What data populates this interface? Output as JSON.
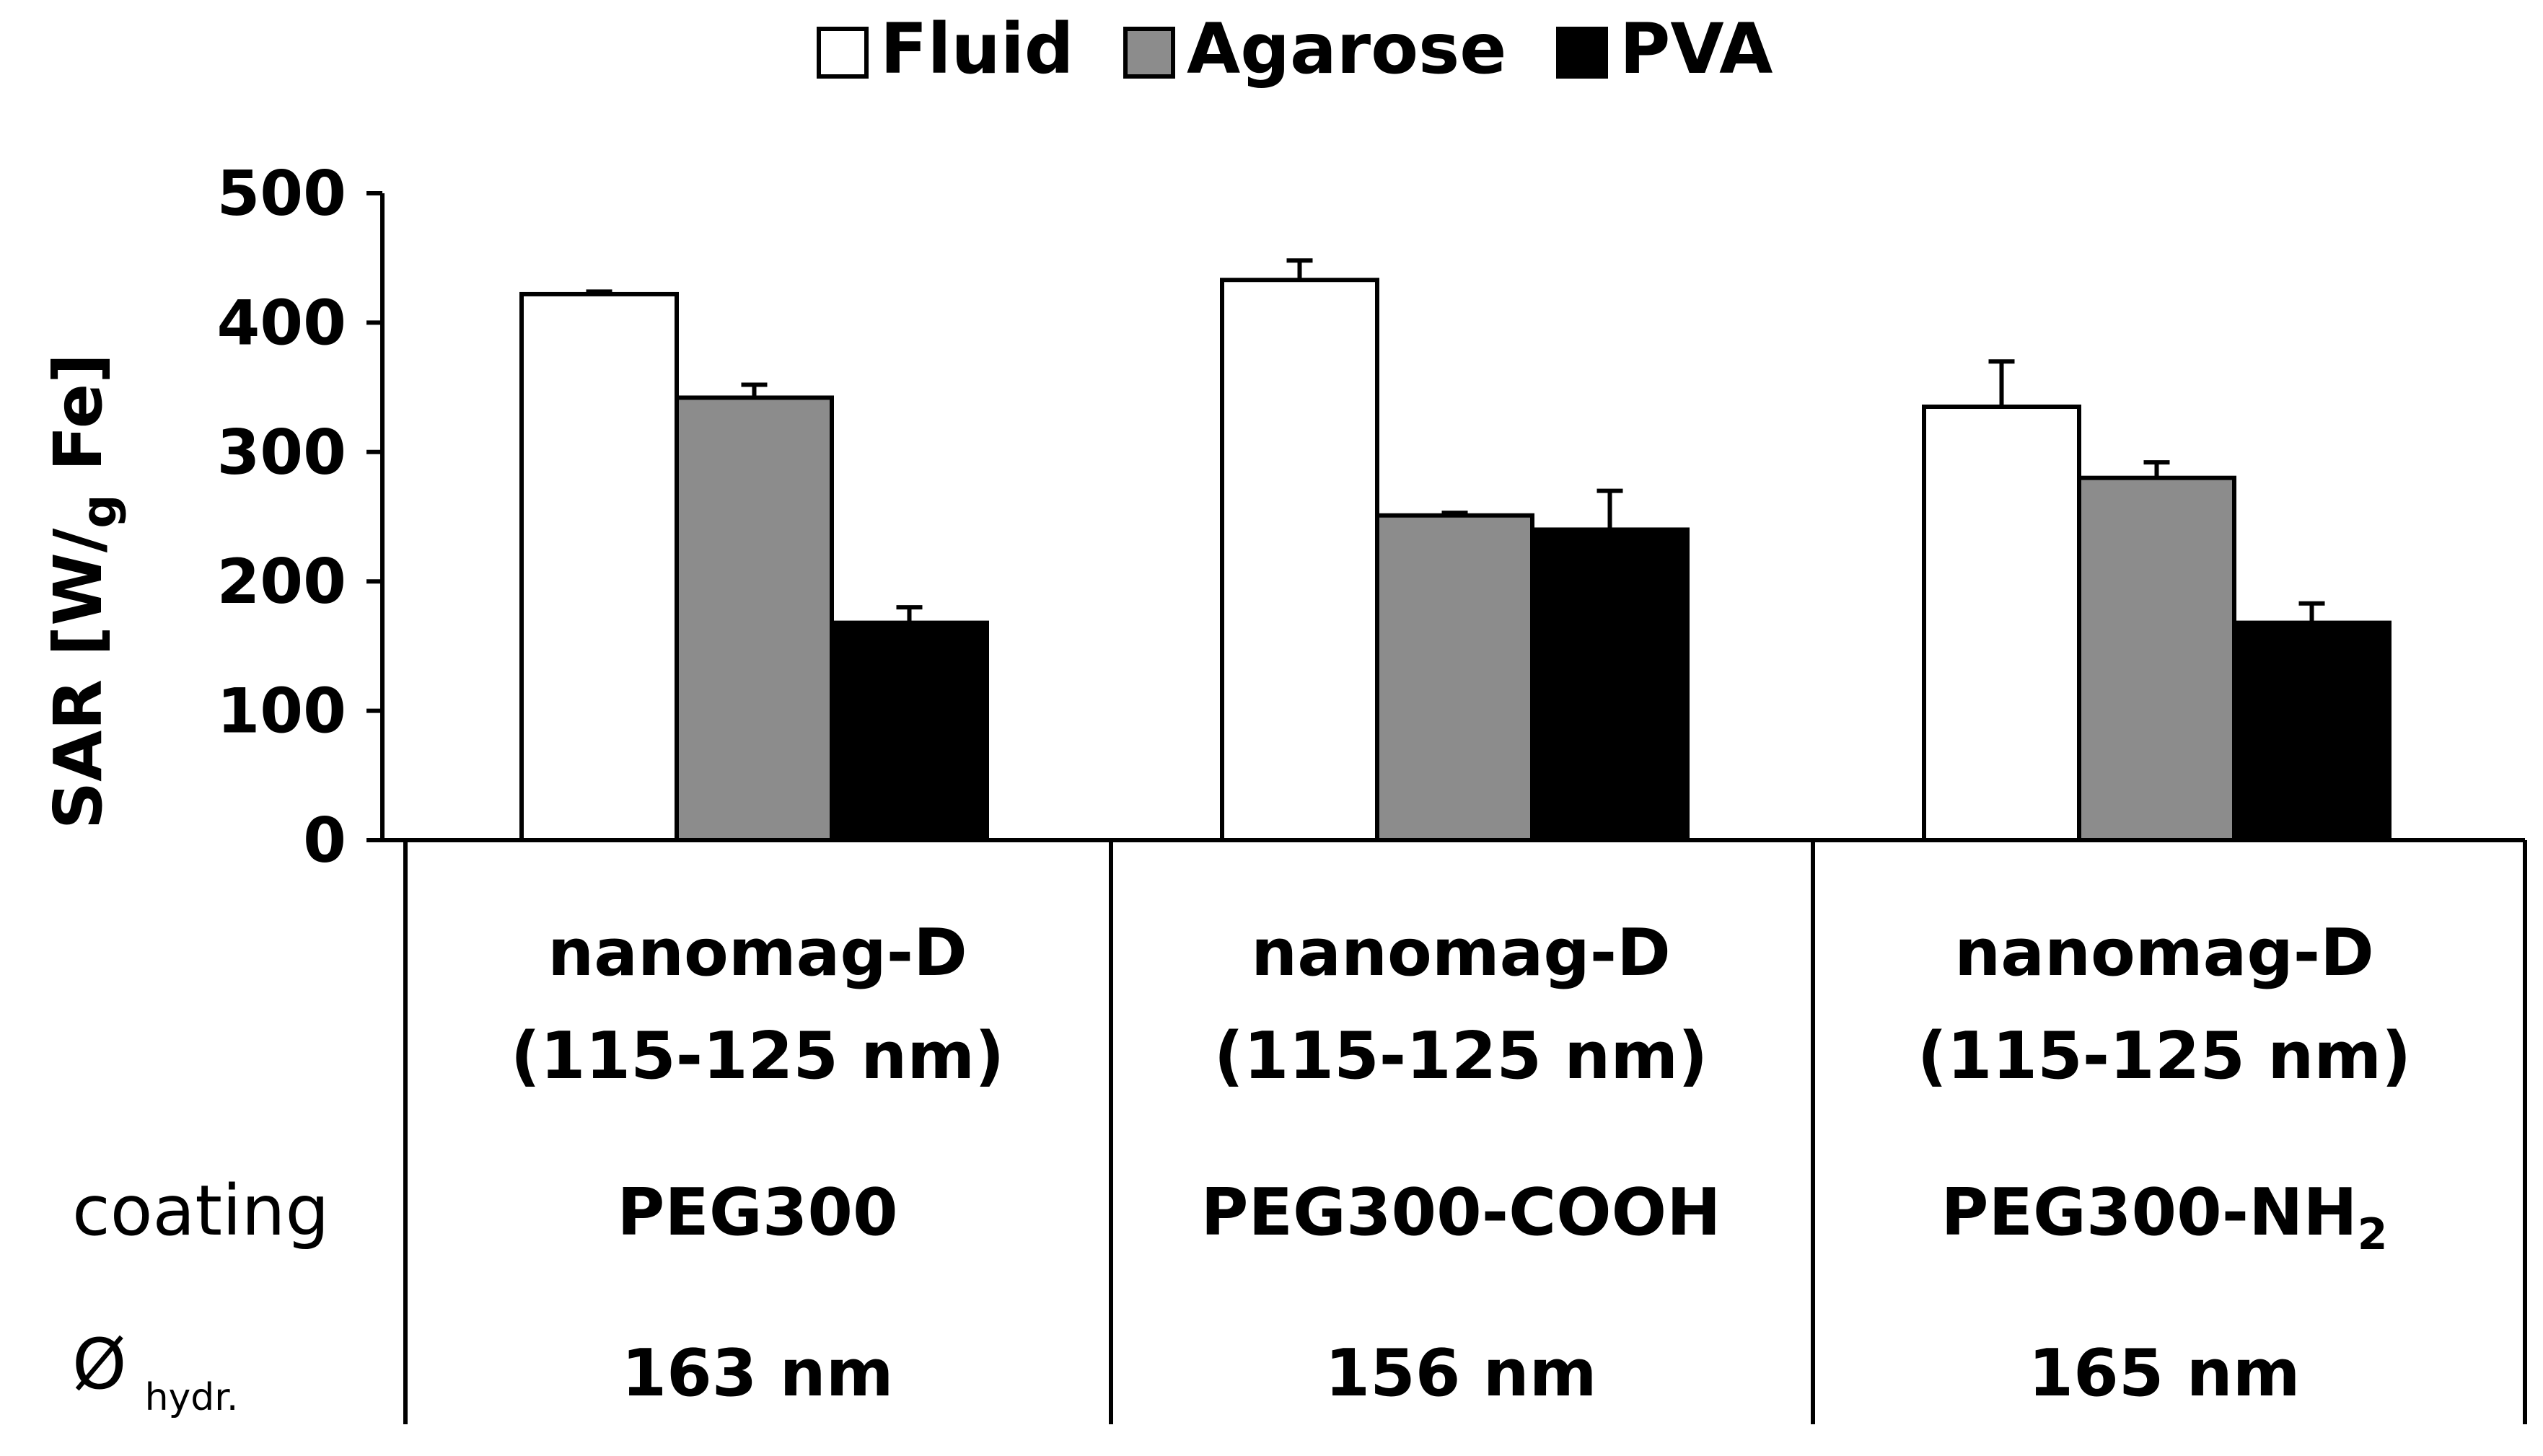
{
  "chart_data": {
    "type": "bar",
    "title": "",
    "xlabel": "",
    "ylabel": "SAR [W/g Fe]",
    "ylabel_parts": {
      "prefix": "SAR [W/",
      "sub": "g",
      "suffix": " Fe]"
    },
    "ylim": [
      0,
      500
    ],
    "yticks": [
      "0",
      "100",
      "200",
      "300",
      "400",
      "500"
    ],
    "grid": false,
    "legend_position": "top-center",
    "categories": [
      "nanomag-D (115-125 nm)",
      "nanomag-D (115-125 nm)",
      "nanomag-D (115-125 nm)"
    ],
    "series": [
      {
        "name": "Fluid",
        "color": "#ffffff",
        "values": [
          422,
          433,
          335
        ],
        "errors": [
          2,
          15,
          35
        ]
      },
      {
        "name": "Agarose",
        "color": "#8c8c8c",
        "values": [
          342,
          251,
          280
        ],
        "errors": [
          10,
          2,
          12
        ]
      },
      {
        "name": "PVA",
        "color": "#000000",
        "values": [
          168,
          240,
          168
        ],
        "errors": [
          12,
          30,
          15
        ]
      }
    ],
    "table": {
      "groups": [
        {
          "line1": "nanomag-D",
          "line2": "(115-125 nm)",
          "coating": {
            "main": "PEG300",
            "sub": ""
          },
          "diameter": "163 nm"
        },
        {
          "line1": "nanomag-D",
          "line2": "(115-125 nm)",
          "coating": {
            "main": "PEG300-COOH",
            "sub": ""
          },
          "diameter": "156 nm"
        },
        {
          "line1": "nanomag-D",
          "line2": "(115-125 nm)",
          "coating": {
            "main": "PEG300-NH",
            "sub": "2"
          },
          "diameter": "165 nm"
        }
      ],
      "row_labels": {
        "coating": "coating",
        "diameter_symbol": "Ø",
        "diameter_sub": "hydr."
      }
    }
  }
}
